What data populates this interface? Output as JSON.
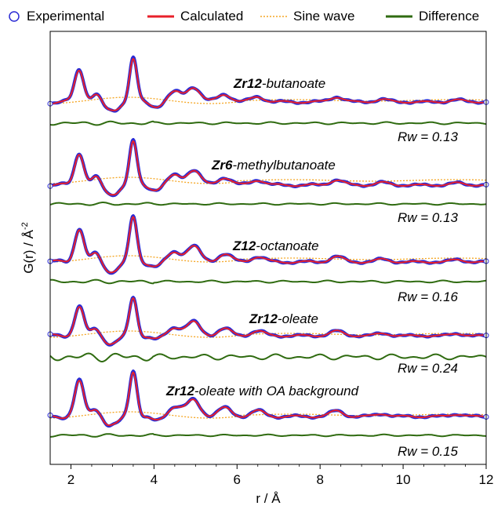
{
  "legend": [
    {
      "key": "exp",
      "label": "Experimental",
      "color": "#2b2bd4",
      "style": "circle"
    },
    {
      "key": "calc",
      "label": "Calculated",
      "color": "#e8202a",
      "style": "line"
    },
    {
      "key": "sine",
      "label": "Sine wave",
      "color": "#f5a623",
      "style": "dotted"
    },
    {
      "key": "diff",
      "label": "Difference",
      "color": "#2f6b10",
      "style": "line"
    }
  ],
  "axes": {
    "xlabel": "r / Å",
    "ylabel": "G(r) / Å",
    "ylabel_sup": "-2",
    "xlim": [
      1.5,
      12
    ],
    "xticks": [
      2,
      4,
      6,
      8,
      10,
      12
    ]
  },
  "panels": [
    {
      "title_bold": "Zr12",
      "title_rest": "-butanoate",
      "rw": "Rw = 0.13"
    },
    {
      "title_bold": "Zr6",
      "title_rest": "-methylbutanoate",
      "rw": "Rw = 0.13"
    },
    {
      "title_bold": "Z12",
      "title_rest": "-octanoate",
      "rw": "Rw = 0.16"
    },
    {
      "title_bold": "Zr12",
      "title_rest": "-oleate",
      "rw": "Rw = 0.24"
    },
    {
      "title_bold": "Zr12",
      "title_rest": "-oleate with OA background",
      "rw": "Rw = 0.15"
    }
  ],
  "chart_data": {
    "type": "line",
    "xlabel": "r / Å",
    "ylabel": "G(r) / Å-2",
    "xlim": [
      1.5,
      12
    ],
    "grid": false,
    "legend_position": "top",
    "series": [
      {
        "name": "Experimental",
        "marker": "circle"
      },
      {
        "name": "Calculated"
      },
      {
        "name": "Sine wave"
      },
      {
        "name": "Difference"
      }
    ],
    "peaks": [
      {
        "r": 2.2,
        "height": 0.75
      },
      {
        "r": 2.6,
        "height": 0.18
      },
      {
        "r": 3.5,
        "height": 1.0
      },
      {
        "r": 4.5,
        "height": 0.22
      },
      {
        "r": 4.95,
        "height": 0.35
      },
      {
        "r": 5.7,
        "height": 0.18
      },
      {
        "r": 6.5,
        "height": 0.12
      },
      {
        "r": 8.4,
        "height": 0.12
      },
      {
        "r": 9.5,
        "height": 0.06
      },
      {
        "r": 11.3,
        "height": 0.05
      }
    ],
    "rw_values": [
      0.13,
      0.13,
      0.16,
      0.24,
      0.15
    ]
  }
}
